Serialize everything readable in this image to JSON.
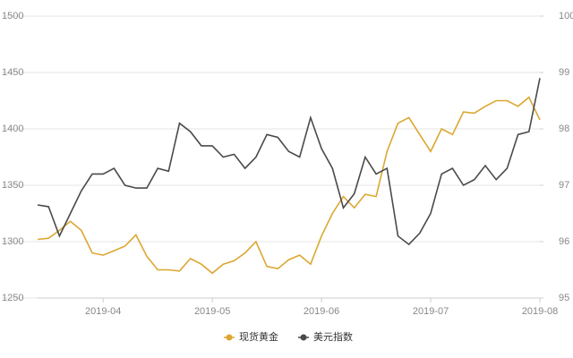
{
  "chart_data": {
    "type": "line",
    "categories": [
      null,
      null,
      null,
      null,
      null,
      null,
      "2019-04",
      null,
      null,
      null,
      null,
      null,
      null,
      null,
      null,
      null,
      "2019-05",
      null,
      null,
      null,
      null,
      null,
      null,
      null,
      null,
      null,
      "2019-06",
      null,
      null,
      null,
      null,
      null,
      null,
      null,
      null,
      null,
      "2019-07",
      null,
      null,
      null,
      null,
      null,
      null,
      null,
      null,
      null,
      "2019-08"
    ],
    "series": [
      {
        "name": "现货黄金",
        "color": "#dca731",
        "axis": "y",
        "values": [
          1302,
          1303,
          1310,
          1318,
          1310,
          1290,
          1288,
          1292,
          1296,
          1306,
          1287,
          1275,
          1275,
          1274,
          1285,
          1280,
          1272,
          1280,
          1283,
          1290,
          1300,
          1278,
          1276,
          1284,
          1288,
          1280,
          1305,
          1325,
          1340,
          1330,
          1342,
          1340,
          1380,
          1405,
          1410,
          1395,
          1380,
          1400,
          1395,
          1415,
          1414,
          1420,
          1425,
          1425,
          1420,
          1428,
          1408
        ]
      },
      {
        "name": "美元指数",
        "color": "#4a4a4a",
        "axis": "y2",
        "values": [
          96.65,
          96.62,
          96.1,
          96.5,
          96.9,
          97.2,
          97.2,
          97.3,
          97.0,
          96.95,
          96.95,
          97.3,
          97.25,
          98.1,
          97.95,
          97.7,
          97.7,
          97.5,
          97.55,
          97.3,
          97.5,
          97.9,
          97.85,
          97.6,
          97.5,
          98.2,
          97.65,
          97.3,
          96.6,
          96.85,
          97.5,
          97.2,
          97.3,
          96.1,
          95.95,
          96.15,
          96.5,
          97.2,
          97.3,
          97.0,
          97.1,
          97.35,
          97.1,
          97.3,
          97.9,
          97.95,
          98.9
        ]
      }
    ],
    "ylim": [
      1250,
      1500
    ],
    "yticks": [
      1250,
      1300,
      1350,
      1400,
      1450,
      1500
    ],
    "y2lim": [
      95,
      100
    ],
    "y2ticks": [
      95,
      96,
      97,
      98,
      99,
      100
    ],
    "grid": true,
    "legend": "bottom"
  }
}
